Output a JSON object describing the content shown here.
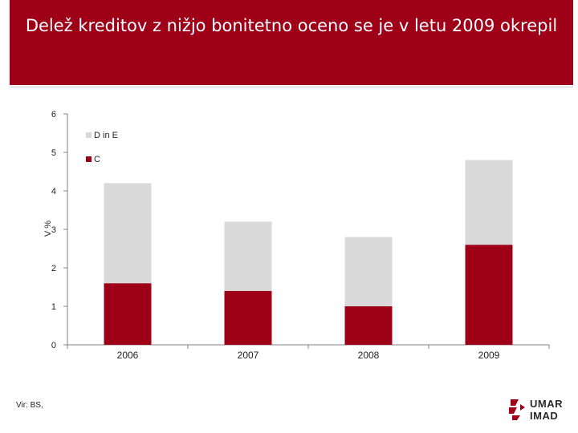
{
  "title": "Delež kreditov z nižjo bonitetno oceno se je v letu 2009 okrepil",
  "source_note": "Vir: BS,",
  "logo": {
    "line1": "UMAR",
    "line2": "IMAD",
    "icon": "umar-imad-logo-icon"
  },
  "colors": {
    "title_bg": "#9e0018",
    "series_c": "#9e0018",
    "series_de": "#d9d9d9",
    "axis": "#808080"
  },
  "chart_data": {
    "type": "bar",
    "stacked": true,
    "title": "Delež kreditov z nižjo bonitetno oceno se je v letu 2009 okrepil",
    "xlabel": "",
    "ylabel": "V %",
    "ylim": [
      0,
      6
    ],
    "yticks": [
      0,
      1,
      2,
      3,
      4,
      5,
      6
    ],
    "categories": [
      "2006",
      "2007",
      "2008",
      "2009"
    ],
    "series": [
      {
        "name": "C",
        "color": "#9e0018",
        "values": [
          1.6,
          1.4,
          1.0,
          2.6
        ]
      },
      {
        "name": "D in E",
        "color": "#d9d9d9",
        "values": [
          2.6,
          1.8,
          1.8,
          2.2
        ]
      }
    ],
    "legend": {
      "position": "top-left",
      "order": [
        "D in E",
        "C"
      ]
    },
    "grid": false
  }
}
